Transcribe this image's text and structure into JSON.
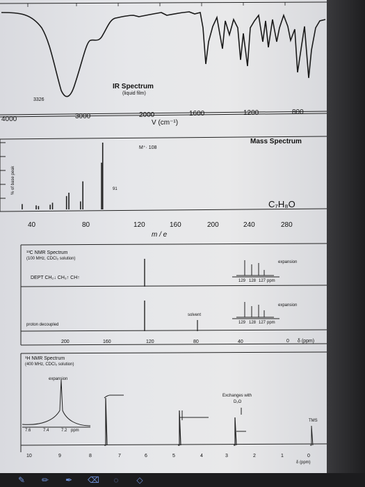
{
  "ir": {
    "title": "IR Spectrum",
    "subtitle": "(liquid film)",
    "peak_label": "3326",
    "axis_ticks": [
      "4000",
      "3000",
      "2000",
      "1600",
      "1200",
      "800"
    ],
    "axis_label": "V  (cm⁻¹)"
  },
  "ms": {
    "title": "Mass Spectrum",
    "molecular_ion": "M⁺·  108",
    "peak_91": "91",
    "formula": "C₇H₈O",
    "y_label": "% of base peak",
    "axis_ticks": [
      "40",
      "80",
      "120",
      "160",
      "200",
      "240",
      "280"
    ],
    "axis_label": "m / e",
    "chart_data": {
      "type": "bar",
      "x": [
        39,
        51,
        53,
        63,
        65,
        77,
        79,
        89,
        91,
        107,
        108
      ],
      "values": [
        8,
        6,
        5,
        7,
        10,
        20,
        25,
        12,
        42,
        70,
        100
      ],
      "xlim": [
        20,
        300
      ],
      "ylim": [
        0,
        100
      ]
    }
  },
  "c13": {
    "title": "¹³C NMR Spectrum",
    "subtitle": "(100 MHz, CDCl₃ solution)",
    "dept_label": "DEPT  CH₂↓ CH₃↑ CH↑",
    "expansion_1": "expansion",
    "expansion_2": "expansion",
    "exp_ticks": [
      "129",
      "128",
      "127",
      "ppm"
    ],
    "solvent_label": "solvent",
    "proton_label": "proton decoupled",
    "axis_ticks": [
      "200",
      "160",
      "120",
      "80",
      "40",
      "0"
    ],
    "axis_unit": "δ (ppm)"
  },
  "h1": {
    "title": "¹H NMR Spectrum",
    "subtitle": "(400 MHz, CDCl₃ solution)",
    "expansion": "expansion",
    "exp_ticks": [
      "7.6",
      "7.4",
      "7.2",
      "ppm"
    ],
    "exchange_label": "Exchanges with",
    "exchange_sub": "D₂O",
    "tms_label": "TMS",
    "axis_ticks": [
      "10",
      "9",
      "8",
      "7",
      "6",
      "5",
      "4",
      "3",
      "2",
      "1",
      "0"
    ],
    "axis_unit": "δ (ppm)"
  },
  "toolbar": {
    "icons": [
      "pen-icon",
      "pencil-icon",
      "highlighter-icon",
      "eraser-icon",
      "lasso-icon",
      "shapes-icon"
    ]
  }
}
